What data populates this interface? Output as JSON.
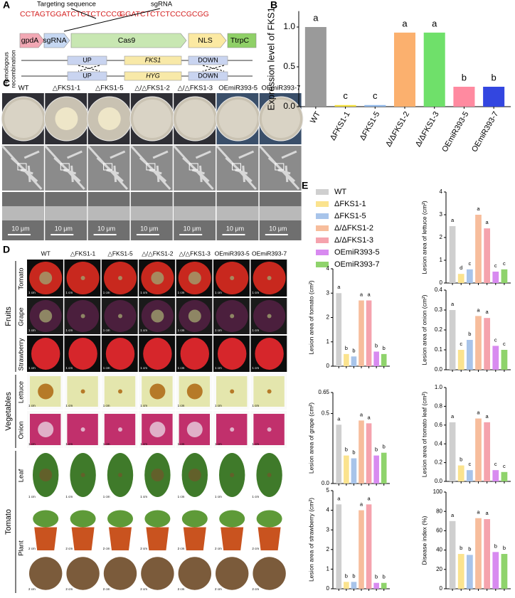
{
  "panel_labels": [
    "A",
    "B",
    "C",
    "D",
    "E"
  ],
  "panel_a": {
    "targeting_label": "Targeting sequence",
    "sgrna_label": "sgRNA",
    "target_seq": "CCTAGTGGATCTCTCTCCCG",
    "sgrna_seq": "GGATCTCTCTCCCGCGG",
    "construct": [
      "gpdA",
      "sgRNA",
      "Cas9",
      "NLS",
      "TtrpC"
    ],
    "hr_label": [
      "Homologous",
      "recombination"
    ],
    "wild": [
      "UP",
      "FKS1",
      "DOWN"
    ],
    "mutant": [
      "UP",
      "HYG",
      "DOWN"
    ]
  },
  "panel_c": {
    "columns": [
      "WT",
      "△FKS1-1",
      "△FKS1-5",
      "△/△FKS1-2",
      "△/△FKS1-3",
      "OEmiR393-5",
      "OEmiR393-7"
    ],
    "scale": "10 μm"
  },
  "panel_d": {
    "groups": [
      {
        "name": "Fruits",
        "rows": [
          "Tomato",
          "Grape",
          "Strawberry"
        ]
      },
      {
        "name": "Vegetables",
        "rows": [
          "Lettuce",
          "Onion"
        ]
      },
      {
        "name": "Tomato",
        "rows": [
          "Leaf",
          "Plant"
        ]
      }
    ],
    "scales": [
      "1 cm",
      "2 cm"
    ]
  },
  "legend": {
    "labels": [
      "WT",
      "ΔFKS1-1",
      "ΔFKS1-5",
      "Δ/ΔFKS1-2",
      "Δ/ΔFKS1-3",
      "OEmiR393-5",
      "OEmiR393-7"
    ],
    "colors": [
      "#cfcfcf",
      "#fbe38e",
      "#a8c4ea",
      "#f7bd9c",
      "#f5a3ad",
      "#d88af0",
      "#8fd36c"
    ]
  },
  "chart_data": [
    {
      "type": "bar",
      "ylabel": "Expression level of FKS1",
      "categories": [
        "WT",
        "ΔFKS1-1",
        "ΔFKS1-5",
        "Δ/ΔFKS1-2",
        "Δ/ΔFKS1-3",
        "OEmiR393-5",
        "OEmiR393-7"
      ],
      "values": [
        1.0,
        0.02,
        0.02,
        0.93,
        0.93,
        0.25,
        0.25
      ],
      "letters": [
        "a",
        "c",
        "c",
        "a",
        "a",
        "b",
        "b"
      ],
      "colors": [
        "#9a9a9a",
        "#f3df3a",
        "#8eb6e8",
        "#fbb06e",
        "#6fe06a",
        "#ff8aa0",
        "#3346e0"
      ],
      "ylim": [
        0,
        1.2
      ],
      "yticks": [
        {
          "value": 0,
          "label": "0.0"
        },
        0.5,
        {
          "value": 1,
          "label": "1.0"
        }
      ]
    },
    {
      "type": "bar",
      "ylabel": "Lesion area of lettuce (cm²)",
      "values": [
        2.5,
        0.4,
        0.6,
        3.0,
        2.4,
        0.5,
        0.6
      ],
      "letters": [
        "a",
        "d",
        "c",
        "a",
        "a",
        "c",
        "c"
      ],
      "colors": [
        "#cfcfcf",
        "#fbe38e",
        "#a8c4ea",
        "#f7bd9c",
        "#f5a3ad",
        "#d88af0",
        "#8fd36c"
      ],
      "ylim": [
        0,
        4
      ],
      "yticks": [
        0,
        1,
        2,
        3,
        4
      ]
    },
    {
      "type": "bar",
      "ylabel": "Lesion area of tomato (cm²)",
      "values": [
        3.0,
        0.5,
        0.4,
        2.7,
        2.7,
        0.6,
        0.5
      ],
      "letters": [
        "a",
        "b",
        "b",
        "a",
        "a",
        "b",
        "b"
      ],
      "colors": [
        "#cfcfcf",
        "#fbe38e",
        "#a8c4ea",
        "#f7bd9c",
        "#f5a3ad",
        "#d88af0",
        "#8fd36c"
      ],
      "ylim": [
        0,
        4
      ],
      "yticks": [
        0,
        1,
        2,
        3,
        4
      ]
    },
    {
      "type": "bar",
      "ylabel": "Lesion area of onion (cm²)",
      "values": [
        0.3,
        0.1,
        0.15,
        0.27,
        0.26,
        0.12,
        0.1
      ],
      "letters": [
        "a",
        "c",
        "b",
        "a",
        "a",
        "c",
        "c"
      ],
      "colors": [
        "#cfcfcf",
        "#fbe38e",
        "#a8c4ea",
        "#f7bd9c",
        "#f5a3ad",
        "#d88af0",
        "#8fd36c"
      ],
      "ylim": [
        0,
        0.4
      ],
      "yticks": [
        {
          "value": 0,
          "label": "0.0"
        },
        0.1,
        0.2,
        0.3,
        0.4
      ]
    },
    {
      "type": "bar",
      "ylabel": "Lesion area of grape (cm²)",
      "values": [
        0.42,
        0.2,
        0.18,
        0.45,
        0.43,
        0.2,
        0.22
      ],
      "letters": [
        "a",
        "b",
        "b",
        "a",
        "a",
        "b",
        "b"
      ],
      "colors": [
        "#cfcfcf",
        "#fbe38e",
        "#a8c4ea",
        "#f7bd9c",
        "#f5a3ad",
        "#d88af0",
        "#8fd36c"
      ],
      "ylim": [
        0,
        0.65
      ],
      "yticks": [
        {
          "value": 0,
          "label": "0.0"
        },
        0.5,
        0.65
      ]
    },
    {
      "type": "bar",
      "ylabel": "Lesion area of tomato leaf (cm²)",
      "values": [
        0.63,
        0.17,
        0.12,
        0.67,
        0.63,
        0.12,
        0.1
      ],
      "letters": [
        "a",
        "b",
        "c",
        "a",
        "a",
        "c",
        "c"
      ],
      "colors": [
        "#cfcfcf",
        "#fbe38e",
        "#a8c4ea",
        "#f7bd9c",
        "#f5a3ad",
        "#d88af0",
        "#8fd36c"
      ],
      "ylim": [
        0,
        1.0
      ],
      "yticks": [
        {
          "value": 0,
          "label": "0.0"
        },
        0.2,
        0.4,
        0.6,
        0.8,
        {
          "value": 1,
          "label": "1.0"
        }
      ]
    },
    {
      "type": "bar",
      "ylabel": "Lesion area of strawberry (cm²)",
      "values": [
        4.3,
        0.35,
        0.35,
        4.0,
        4.3,
        0.3,
        0.3
      ],
      "letters": [
        "a",
        "b",
        "b",
        "a",
        "a",
        "b",
        "b"
      ],
      "colors": [
        "#cfcfcf",
        "#fbe38e",
        "#a8c4ea",
        "#f7bd9c",
        "#f5a3ad",
        "#d88af0",
        "#8fd36c"
      ],
      "ylim": [
        0,
        5
      ],
      "yticks": [
        0,
        1,
        2,
        3,
        4,
        5
      ]
    },
    {
      "type": "bar",
      "ylabel": "Disease index (%)",
      "values": [
        70,
        36,
        35,
        73,
        72,
        38,
        36
      ],
      "letters": [
        "a",
        "b",
        "b",
        "a",
        "a",
        "b",
        "b"
      ],
      "colors": [
        "#cfcfcf",
        "#fbe38e",
        "#a8c4ea",
        "#f7bd9c",
        "#f5a3ad",
        "#d88af0",
        "#8fd36c"
      ],
      "ylim": [
        0,
        100
      ],
      "yticks": [
        0,
        20,
        40,
        60,
        80,
        100
      ]
    }
  ]
}
